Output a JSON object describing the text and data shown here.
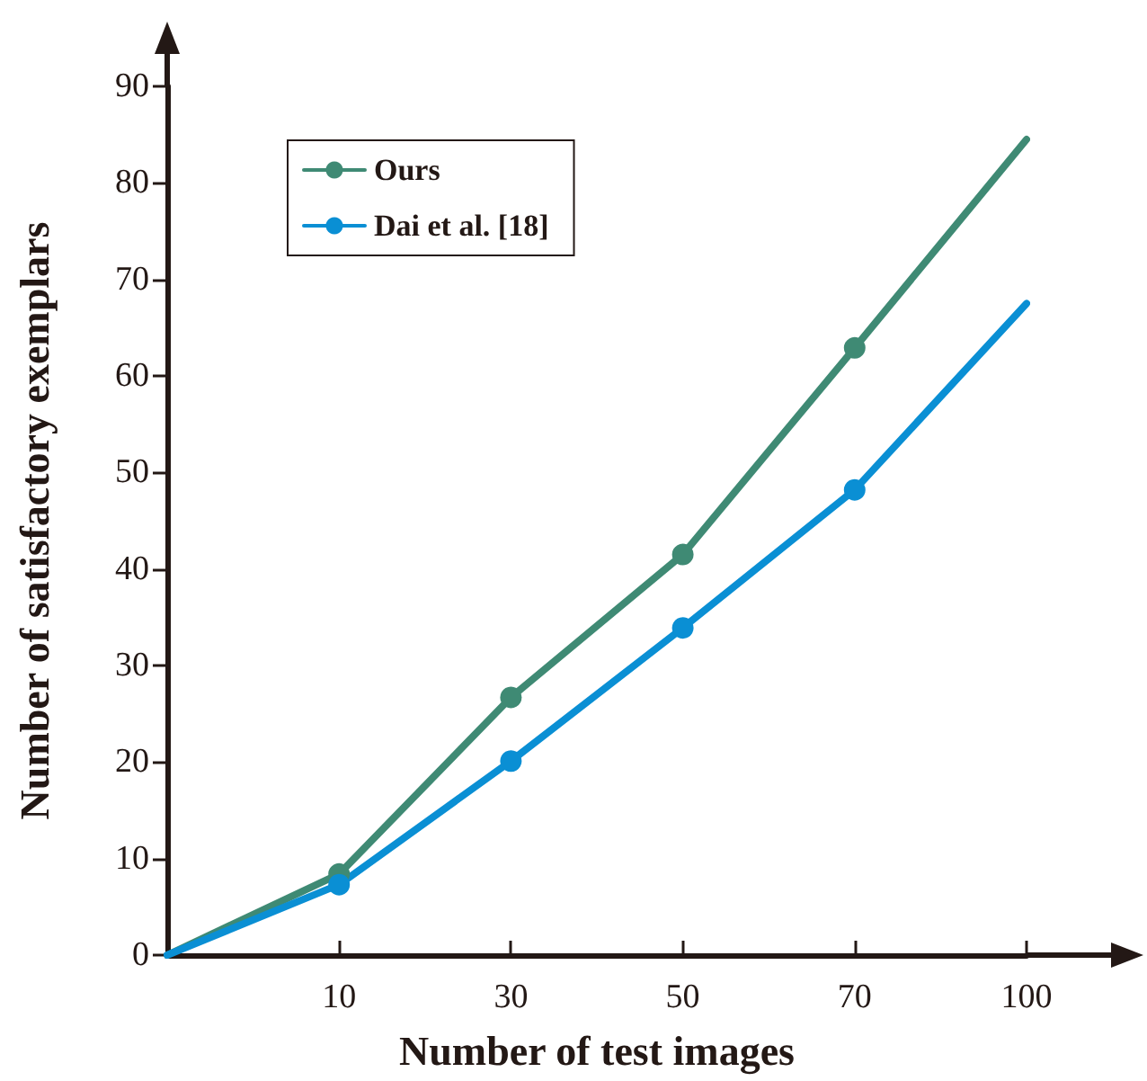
{
  "chart_data": {
    "type": "line",
    "xlabel": "Number of test images",
    "ylabel": "Number of satisfactory exemplars",
    "categories": [
      null,
      "10",
      "30",
      "50",
      "70",
      "100"
    ],
    "series": [
      {
        "name": "Ours",
        "color": "#3f8a74",
        "values": [
          0,
          8.4,
          26.7,
          41.5,
          62.9,
          84.5
        ]
      },
      {
        "name": "Dai et al. [18]",
        "color": "#0a8fd4",
        "values": [
          0,
          7.3,
          20.1,
          33.9,
          48.2,
          67.5
        ]
      }
    ],
    "ylim": [
      0,
      90
    ],
    "yticks": [
      0,
      10,
      20,
      30,
      40,
      50,
      60,
      70,
      80,
      90
    ],
    "grid": false,
    "legend": "top left",
    "marker": "circle",
    "line_style": "solid"
  }
}
